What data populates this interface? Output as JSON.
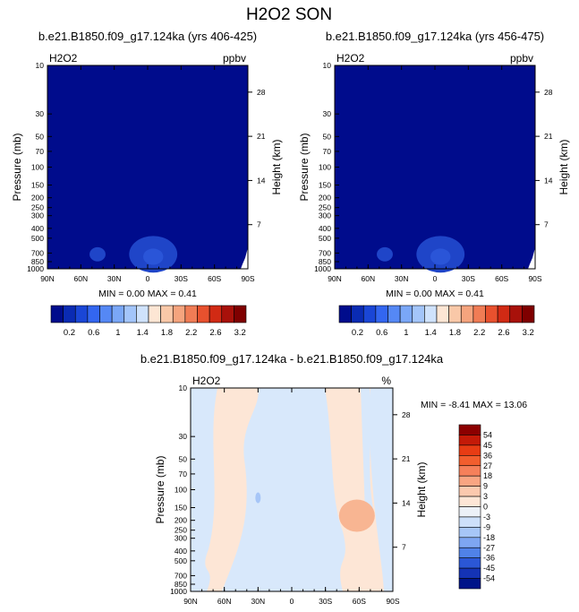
{
  "title": "H2O2 SON",
  "chart_data": [
    {
      "type": "heatmap",
      "title": "b.e21.B1850.f09_g17.124ka (yrs 406-425)",
      "left_label": "H2O2",
      "right_label": "ppbv",
      "xlabel": "",
      "ylabel": "Pressure (mb)",
      "y2label": "Height (km)",
      "x_ticks": [
        "90N",
        "60N",
        "30N",
        "0",
        "30S",
        "60S",
        "90S"
      ],
      "x_values": [
        90,
        60,
        30,
        0,
        -30,
        -60,
        -90
      ],
      "y_ticks": [
        "10",
        "30",
        "50",
        "70",
        "100",
        "150",
        "200",
        "250",
        "300",
        "400",
        "500",
        "700",
        "850",
        "1000"
      ],
      "y_values": [
        10,
        30,
        50,
        70,
        100,
        150,
        200,
        250,
        300,
        400,
        500,
        700,
        850,
        1000
      ],
      "y2_ticks": [
        "28",
        "21",
        "14",
        "7"
      ],
      "ylim": [
        1000,
        10
      ],
      "log_y": true,
      "stats": "MIN =   0.00   MAX =   0.41",
      "min": 0.0,
      "max": 0.41,
      "colorbar": {
        "labels": [
          "0.2",
          "0.6",
          "1",
          "1.4",
          "1.8",
          "2.2",
          "2.6",
          "3.2"
        ],
        "colors": [
          "#000c8c",
          "#0a2bb3",
          "#1a46d6",
          "#3366f0",
          "#5588f5",
          "#7aa7f7",
          "#a3c5fa",
          "#cfe2fc",
          "#fde6d4",
          "#f9c8a8",
          "#f5a47e",
          "#f07c55",
          "#e8512e",
          "#d12a14",
          "#a8110a",
          "#7f0000"
        ]
      }
    },
    {
      "type": "heatmap",
      "title": "b.e21.B1850.f09_g17.124ka (yrs 456-475)",
      "left_label": "H2O2",
      "right_label": "ppbv",
      "ylabel": "Pressure (mb)",
      "y2label": "Height (km)",
      "x_ticks": [
        "90N",
        "60N",
        "30N",
        "0",
        "30S",
        "60S",
        "90S"
      ],
      "y_ticks": [
        "10",
        "30",
        "50",
        "70",
        "100",
        "150",
        "200",
        "250",
        "300",
        "400",
        "500",
        "700",
        "850",
        "1000"
      ],
      "y2_ticks": [
        "28",
        "21",
        "14",
        "7"
      ],
      "ylim": [
        1000,
        10
      ],
      "log_y": true,
      "stats": "MIN =   0.00   MAX =   0.41",
      "min": 0.0,
      "max": 0.41,
      "colorbar": {
        "labels": [
          "0.2",
          "0.6",
          "1",
          "1.4",
          "1.8",
          "2.2",
          "2.6",
          "3.2"
        ]
      }
    },
    {
      "type": "heatmap",
      "title": "b.e21.B1850.f09_g17.124ka - b.e21.B1850.f09_g17.124ka",
      "left_label": "H2O2",
      "right_label": "%",
      "ylabel": "Pressure (mb)",
      "y2label": "Height (km)",
      "x_ticks": [
        "90N",
        "60N",
        "30N",
        "0",
        "30S",
        "60S",
        "90S"
      ],
      "y_ticks": [
        "10",
        "30",
        "50",
        "70",
        "100",
        "150",
        "200",
        "250",
        "300",
        "400",
        "500",
        "700",
        "850",
        "1000"
      ],
      "y2_ticks": [
        "28",
        "21",
        "14",
        "7"
      ],
      "ylim": [
        1000,
        10
      ],
      "log_y": true,
      "stats": "MIN = -8.41   MAX = 13.06",
      "min": -8.41,
      "max": 13.06,
      "colorbar": {
        "labels": [
          "54",
          "45",
          "36",
          "27",
          "18",
          "9",
          "3",
          "0",
          "-3",
          "-9",
          "-18",
          "-27",
          "-36",
          "-45",
          "-54"
        ],
        "colors": [
          "#8c0000",
          "#c41a08",
          "#e83c14",
          "#f25e2e",
          "#f6805a",
          "#f9a582",
          "#fbc9ae",
          "#fde6d6",
          "#ecf1f7",
          "#cde0fa",
          "#a7c6f7",
          "#7ea6f2",
          "#5082e8",
          "#2b57d6",
          "#1433b5",
          "#001489"
        ]
      }
    }
  ]
}
